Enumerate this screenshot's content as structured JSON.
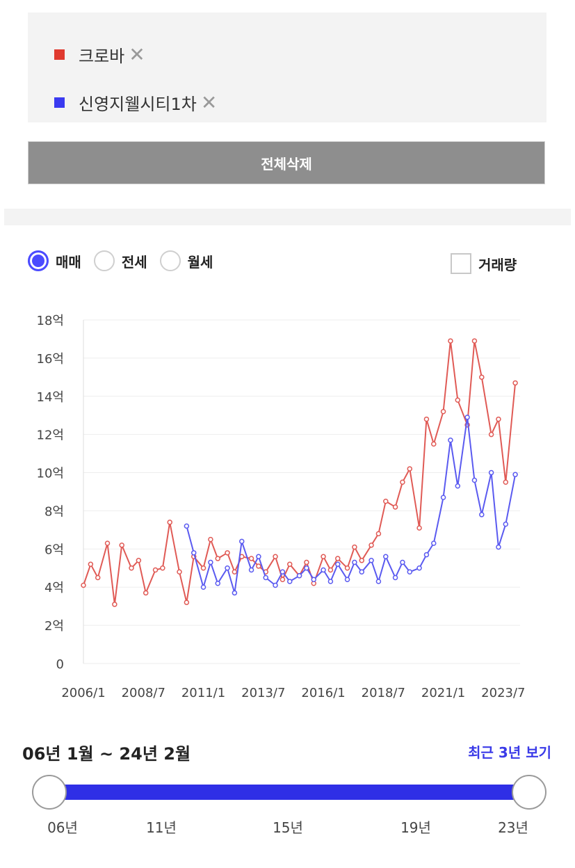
{
  "legend": {
    "items": [
      {
        "label": "크로바",
        "color": "#e03a2f",
        "remove": "✕"
      },
      {
        "label": "신영지웰시티1차",
        "color": "#3a3af0",
        "remove": "✕"
      }
    ]
  },
  "clear_all": "전체삭제",
  "trade_types": [
    {
      "label": "매매",
      "selected": true
    },
    {
      "label": "전세",
      "selected": false
    },
    {
      "label": "월세",
      "selected": false
    }
  ],
  "volume_label": "거래량",
  "chart_data": {
    "type": "line",
    "y_ticks": [
      "18억",
      "16억",
      "14억",
      "12억",
      "10억",
      "8억",
      "6억",
      "4억",
      "2억",
      "0"
    ],
    "x_ticks": [
      "2006/1",
      "2008/7",
      "2011/1",
      "2013/7",
      "2016/1",
      "2018/7",
      "2021/1",
      "2023/7"
    ],
    "ylim": [
      0,
      18
    ],
    "grid": true,
    "series": [
      {
        "name": "크로바",
        "color": "#e05a55",
        "x": [
          2006.0,
          2006.3,
          2006.6,
          2007.0,
          2007.3,
          2007.6,
          2008.0,
          2008.3,
          2008.6,
          2009.0,
          2009.3,
          2009.6,
          2010.0,
          2010.3,
          2010.6,
          2011.0,
          2011.3,
          2011.6,
          2012.0,
          2012.3,
          2012.6,
          2013.0,
          2013.3,
          2013.6,
          2014.0,
          2014.3,
          2014.6,
          2015.0,
          2015.3,
          2015.6,
          2016.0,
          2016.3,
          2016.6,
          2017.0,
          2017.3,
          2017.6,
          2018.0,
          2018.3,
          2018.6,
          2019.0,
          2019.3,
          2019.6,
          2020.0,
          2020.3,
          2020.6,
          2021.0,
          2021.3,
          2021.6,
          2022.0,
          2022.3,
          2022.6,
          2023.0,
          2023.3,
          2023.6,
          2024.0
        ],
        "y": [
          4.1,
          5.2,
          4.5,
          6.3,
          3.1,
          6.2,
          5.0,
          5.4,
          3.7,
          4.9,
          5.0,
          7.4,
          4.8,
          3.2,
          5.6,
          5.0,
          6.5,
          5.5,
          5.8,
          4.8,
          5.6,
          5.5,
          5.1,
          4.8,
          5.6,
          4.4,
          5.2,
          4.6,
          5.3,
          4.2,
          5.6,
          4.9,
          5.5,
          5.0,
          6.1,
          5.4,
          6.2,
          6.8,
          8.5,
          8.2,
          9.5,
          10.2,
          7.1,
          12.8,
          11.5,
          13.2,
          16.9,
          13.8,
          12.5,
          16.9,
          15.0,
          12.0,
          12.8,
          9.5,
          14.7
        ]
      },
      {
        "name": "신영지웰시티1차",
        "color": "#5a5af0",
        "x": [
          2010.3,
          2010.6,
          2011.0,
          2011.3,
          2011.6,
          2012.0,
          2012.3,
          2012.6,
          2013.0,
          2013.3,
          2013.6,
          2014.0,
          2014.3,
          2014.6,
          2015.0,
          2015.3,
          2015.6,
          2016.0,
          2016.3,
          2016.6,
          2017.0,
          2017.3,
          2017.6,
          2018.0,
          2018.3,
          2018.6,
          2019.0,
          2019.3,
          2019.6,
          2020.0,
          2020.3,
          2020.6,
          2021.0,
          2021.3,
          2021.6,
          2022.0,
          2022.3,
          2022.6,
          2023.0,
          2023.3,
          2023.6,
          2024.0
        ],
        "y": [
          7.2,
          5.8,
          4.0,
          5.3,
          4.2,
          5.0,
          3.7,
          6.4,
          4.9,
          5.6,
          4.5,
          4.1,
          4.8,
          4.3,
          4.6,
          5.0,
          4.4,
          4.9,
          4.3,
          5.2,
          4.4,
          5.3,
          4.8,
          5.4,
          4.3,
          5.6,
          4.5,
          5.3,
          4.8,
          5.0,
          5.7,
          6.3,
          8.7,
          11.7,
          9.3,
          12.9,
          9.6,
          7.8,
          10.0,
          6.1,
          7.3,
          9.9
        ]
      }
    ]
  },
  "range": {
    "label": "06년 1월 ~ 24년 2월",
    "recent_link": "최근 3년 보기",
    "ticks": [
      "06년",
      "11년",
      "15년",
      "19년",
      "23년"
    ]
  }
}
